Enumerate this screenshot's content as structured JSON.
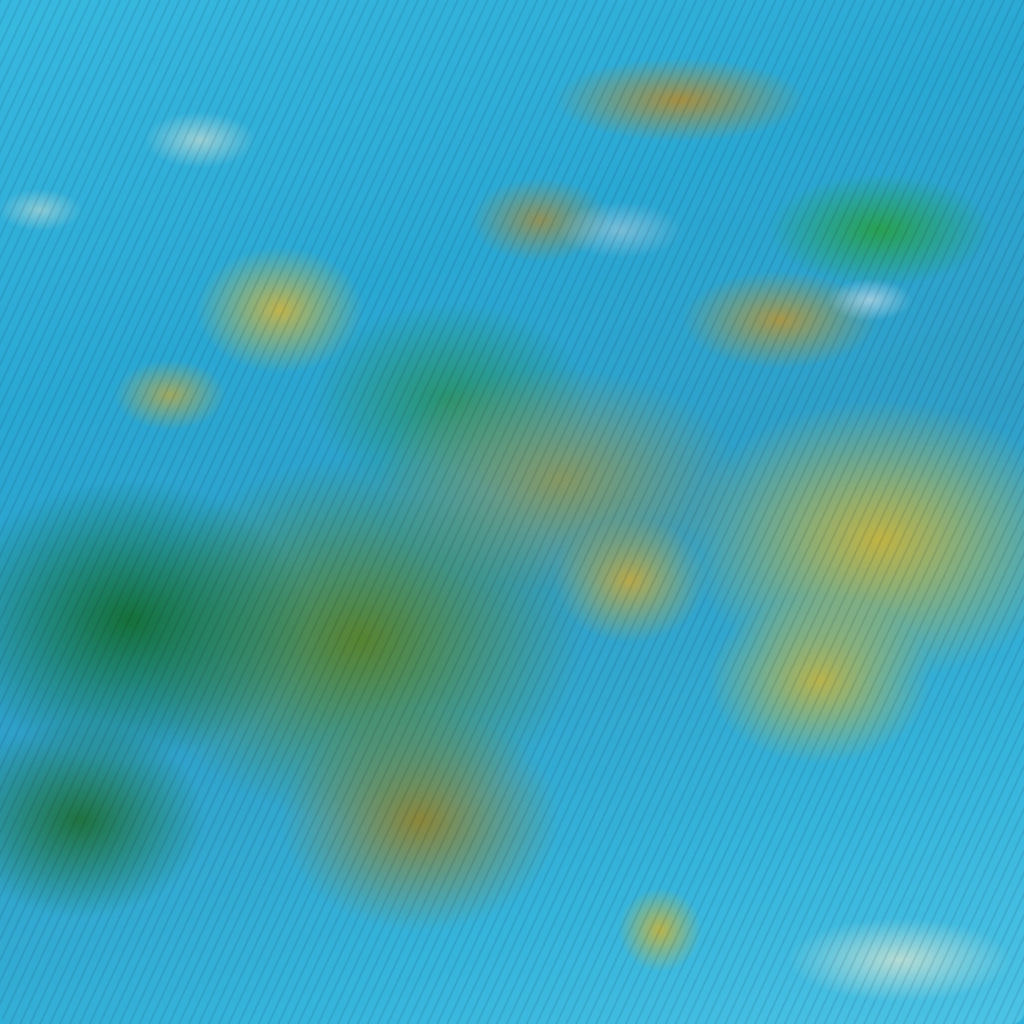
{
  "image": {
    "description_type": "false-color satellite imagery",
    "colors": {
      "water_cloud": "#2fb0d8",
      "vegetation": "#1e8c3c",
      "arid": "#c8b43c",
      "high_cloud": "#c8e1d2"
    }
  }
}
